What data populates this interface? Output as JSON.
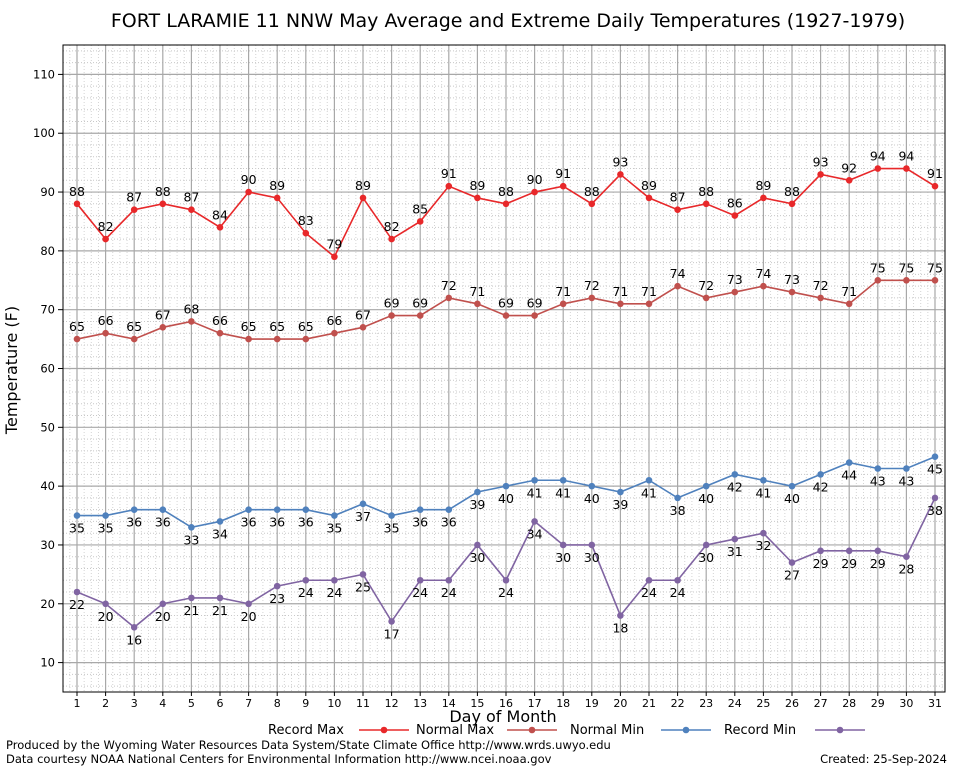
{
  "chart_data": {
    "type": "line",
    "title": "FORT LARAMIE 11 NNW May Average and Extreme Daily Temperatures (1927-1979)",
    "xlabel": "Day of Month",
    "ylabel": "Temperature (F)",
    "ylim": [
      5,
      115
    ],
    "yticks": [
      10,
      20,
      30,
      40,
      50,
      60,
      70,
      80,
      90,
      100,
      110
    ],
    "grid": true,
    "legend_placement": "bottom",
    "x": [
      1,
      2,
      3,
      4,
      5,
      6,
      7,
      8,
      9,
      10,
      11,
      12,
      13,
      14,
      15,
      16,
      17,
      18,
      19,
      20,
      21,
      22,
      23,
      24,
      25,
      26,
      27,
      28,
      29,
      30,
      31
    ],
    "series": [
      {
        "name": "Record Max",
        "color": "#e8282a",
        "label_pos": "above",
        "values": [
          88,
          82,
          87,
          88,
          87,
          84,
          90,
          89,
          83,
          79,
          89,
          82,
          85,
          91,
          89,
          88,
          90,
          91,
          88,
          93,
          89,
          87,
          88,
          86,
          89,
          88,
          93,
          92,
          94,
          94,
          91
        ]
      },
      {
        "name": "Normal Max",
        "color": "#c0504d",
        "label_pos": "above",
        "values": [
          65,
          66,
          65,
          67,
          68,
          66,
          65,
          65,
          65,
          66,
          67,
          69,
          69,
          72,
          71,
          69,
          69,
          71,
          72,
          71,
          71,
          74,
          72,
          73,
          74,
          73,
          72,
          71,
          75,
          75,
          75
        ]
      },
      {
        "name": "Normal Min",
        "color": "#4f81bd",
        "label_pos": "below",
        "values": [
          35,
          35,
          36,
          36,
          33,
          34,
          36,
          36,
          36,
          35,
          37,
          35,
          36,
          36,
          39,
          40,
          41,
          41,
          40,
          39,
          41,
          38,
          40,
          42,
          41,
          40,
          42,
          44,
          43,
          43,
          45
        ]
      },
      {
        "name": "Record Min",
        "color": "#8064a2",
        "label_pos": "below",
        "values": [
          22,
          20,
          16,
          20,
          21,
          21,
          20,
          23,
          24,
          24,
          25,
          17,
          24,
          24,
          30,
          24,
          34,
          30,
          30,
          18,
          24,
          24,
          30,
          31,
          32,
          27,
          29,
          29,
          29,
          28,
          38
        ]
      }
    ]
  },
  "footer": {
    "credit_line1": "Produced by the Wyoming Water Resources Data System/State Climate Office http://www.wrds.uwyo.edu",
    "credit_line2": "Data courtesy NOAA National Centers for Environmental Information http://www.ncei.noaa.gov",
    "created": "Created:  25-Sep-2024"
  }
}
